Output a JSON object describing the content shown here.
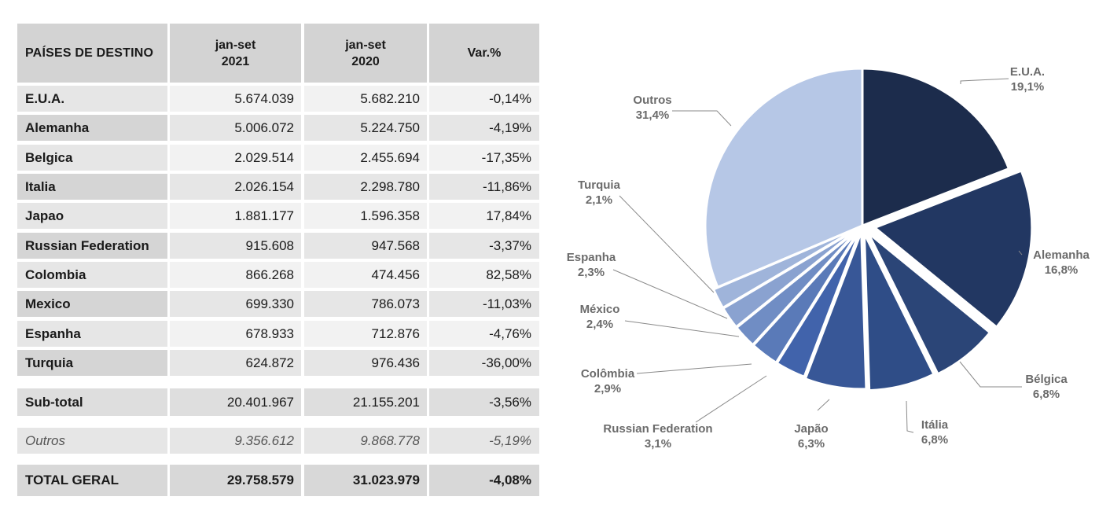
{
  "table": {
    "headers": {
      "country": "PAÍSES DE DESTINO",
      "y2021_line1": "jan-set",
      "y2021_line2": "2021",
      "y2020_line1": "jan-set",
      "y2020_line2": "2020",
      "var": "Var.%"
    },
    "rows": [
      {
        "country": "E.U.A.",
        "v2021": "5.674.039",
        "v2020": "5.682.210",
        "var": "-0,14%"
      },
      {
        "country": "Alemanha",
        "v2021": "5.006.072",
        "v2020": "5.224.750",
        "var": "-4,19%"
      },
      {
        "country": "Belgica",
        "v2021": "2.029.514",
        "v2020": "2.455.694",
        "var": "-17,35%"
      },
      {
        "country": "Italia",
        "v2021": "2.026.154",
        "v2020": "2.298.780",
        "var": "-11,86%"
      },
      {
        "country": "Japao",
        "v2021": "1.881.177",
        "v2020": "1.596.358",
        "var": "17,84%"
      },
      {
        "country": "Russian Federation",
        "v2021": "915.608",
        "v2020": "947.568",
        "var": "-3,37%"
      },
      {
        "country": "Colombia",
        "v2021": "866.268",
        "v2020": "474.456",
        "var": "82,58%"
      },
      {
        "country": "Mexico",
        "v2021": "699.330",
        "v2020": "786.073",
        "var": "-11,03%"
      },
      {
        "country": "Espanha",
        "v2021": "678.933",
        "v2020": "712.876",
        "var": "-4,76%"
      },
      {
        "country": "Turquia",
        "v2021": "624.872",
        "v2020": "976.436",
        "var": "-36,00%"
      }
    ],
    "subtotal": {
      "label": "Sub-total",
      "v2021": "20.401.967",
      "v2020": "21.155.201",
      "var": "-3,56%"
    },
    "outros": {
      "label": "Outros",
      "v2021": "9.356.612",
      "v2020": "9.868.778",
      "var": "-5,19%"
    },
    "total": {
      "label": "TOTAL GERAL",
      "v2021": "29.758.579",
      "v2020": "31.023.979",
      "var": "-4,08%"
    }
  },
  "chart_data": {
    "type": "pie",
    "slices": [
      {
        "name": "E.U.A.",
        "value": 19.1,
        "label": "19,1%",
        "color": "#1c2c4c"
      },
      {
        "name": "Alemanha",
        "value": 16.8,
        "label": "16,8%",
        "color": "#223762"
      },
      {
        "name": "Bélgica",
        "value": 6.8,
        "label": "6,8%",
        "color": "#2b4577"
      },
      {
        "name": "Itália",
        "value": 6.8,
        "label": "6,8%",
        "color": "#2f4d87"
      },
      {
        "name": "Japão",
        "value": 6.3,
        "label": "6,3%",
        "color": "#385797"
      },
      {
        "name": "Russian Federation",
        "value": 3.1,
        "label": "3,1%",
        "color": "#4163ab"
      },
      {
        "name": "Colômbia",
        "value": 2.9,
        "label": "2,9%",
        "color": "#5a7ab8"
      },
      {
        "name": "México",
        "value": 2.4,
        "label": "2,4%",
        "color": "#708dc4"
      },
      {
        "name": "Espanha",
        "value": 2.3,
        "label": "2,3%",
        "color": "#8aa2d0"
      },
      {
        "name": "Turquia",
        "value": 2.1,
        "label": "2,1%",
        "color": "#9fb4da"
      },
      {
        "name": "Outros",
        "value": 31.4,
        "label": "31,4%",
        "color": "#b6c7e6"
      }
    ]
  }
}
